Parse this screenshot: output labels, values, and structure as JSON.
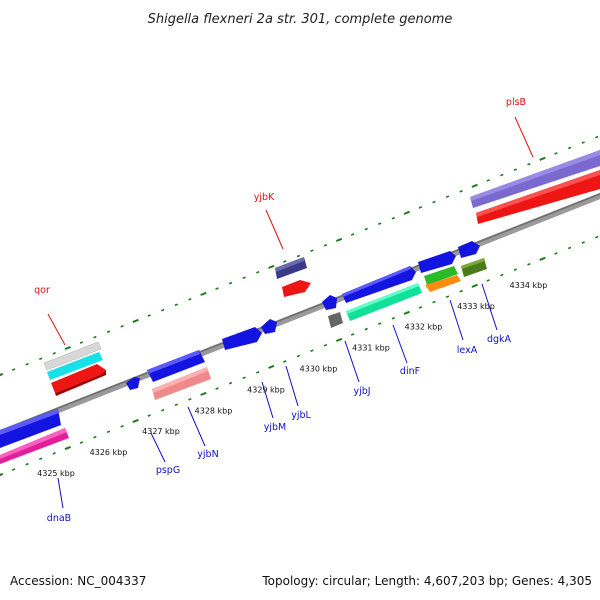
{
  "title": "Shigella flexneri 2a str. 301, complete genome",
  "footer": {
    "accession": "Accession: NC_004337",
    "summary": "Topology: circular; Length: 4,607,203 bp; Genes: 4,305"
  },
  "ticks": [
    {
      "label": "4325 kbp",
      "pos": 1
    },
    {
      "label": "4326 kbp",
      "pos": 2
    },
    {
      "label": "4327 kbp",
      "pos": 3
    },
    {
      "label": "4328 kbp",
      "pos": 4
    },
    {
      "label": "4329 kbp",
      "pos": 5
    },
    {
      "label": "4330 kbp",
      "pos": 6
    },
    {
      "label": "4331 kbp",
      "pos": 7
    },
    {
      "label": "4332 kbp",
      "pos": 8
    },
    {
      "label": "4333 kbp",
      "pos": 9
    },
    {
      "label": "4334 kbp",
      "pos": 10
    }
  ],
  "colors": {
    "backbone": "#8a8a8a",
    "tick": "#1f7a1f",
    "forward_label": "#e01010",
    "reverse_label": "#1010c0"
  },
  "genes": [
    {
      "name": "qor",
      "strand": "forward"
    },
    {
      "name": "yjbK",
      "strand": "forward"
    },
    {
      "name": "plsB",
      "strand": "forward"
    },
    {
      "name": "dnaB",
      "strand": "reverse"
    },
    {
      "name": "pspG",
      "strand": "reverse"
    },
    {
      "name": "yjbN",
      "strand": "reverse"
    },
    {
      "name": "yjbM",
      "strand": "reverse"
    },
    {
      "name": "yjbL",
      "strand": "reverse"
    },
    {
      "name": "yjbJ",
      "strand": "reverse"
    },
    {
      "name": "dinF",
      "strand": "reverse"
    },
    {
      "name": "lexA",
      "strand": "reverse"
    },
    {
      "name": "dgkA",
      "strand": "reverse"
    }
  ]
}
